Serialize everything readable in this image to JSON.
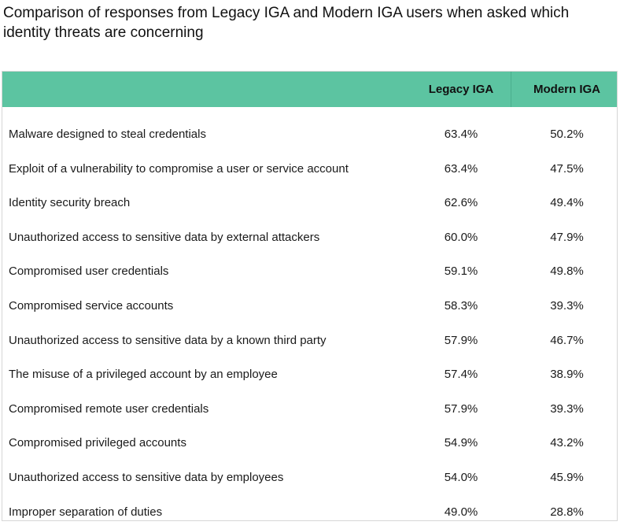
{
  "chart_data": {
    "type": "table",
    "title": "Comparison of responses from Legacy IGA and Modern IGA users when asked which identity threats are concerning",
    "columns": [
      "",
      "Legacy IGA",
      "Modern IGA"
    ],
    "series": [
      {
        "name": "Legacy IGA",
        "values": [
          "63.4%",
          "63.4%",
          "62.6%",
          "60.0%",
          "59.1%",
          "58.3%",
          "57.9%",
          "57.4%",
          "57.9%",
          "54.9%",
          "54.0%",
          "49.0%"
        ]
      },
      {
        "name": "Modern IGA",
        "values": [
          "50.2%",
          "47.5%",
          "49.4%",
          "47.9%",
          "49.8%",
          "39.3%",
          "46.7%",
          "38.9%",
          "39.3%",
          "43.2%",
          "45.9%",
          "28.8%"
        ]
      }
    ],
    "rows": [
      {
        "label": "Malware designed to steal credentials",
        "legacy": "63.4%",
        "modern": "50.2%"
      },
      {
        "label": "Exploit of a vulnerability to compromise a user or service account",
        "legacy": "63.4%",
        "modern": "47.5%"
      },
      {
        "label": "Identity security breach",
        "legacy": "62.6%",
        "modern": "49.4%"
      },
      {
        "label": "Unauthorized access to sensitive data by external attackers",
        "legacy": "60.0%",
        "modern": "47.9%"
      },
      {
        "label": "Compromised user credentials",
        "legacy": "59.1%",
        "modern": "49.8%"
      },
      {
        "label": "Compromised service accounts",
        "legacy": "58.3%",
        "modern": "39.3%"
      },
      {
        "label": "Unauthorized access to sensitive data by a known third party",
        "legacy": "57.9%",
        "modern": "46.7%"
      },
      {
        "label": "The misuse of a privileged account by an employee",
        "legacy": "57.4%",
        "modern": "38.9%"
      },
      {
        "label": "Compromised remote user credentials",
        "legacy": "57.9%",
        "modern": "39.3%"
      },
      {
        "label": "Compromised privileged accounts",
        "legacy": "54.9%",
        "modern": "43.2%"
      },
      {
        "label": "Unauthorized access to sensitive data by employees",
        "legacy": "54.0%",
        "modern": "45.9%"
      },
      {
        "label": "Improper separation of duties",
        "legacy": "49.0%",
        "modern": "28.8%"
      }
    ]
  },
  "colors": {
    "header_bg": "#5cc4a1",
    "text": "#1a1a1a"
  }
}
